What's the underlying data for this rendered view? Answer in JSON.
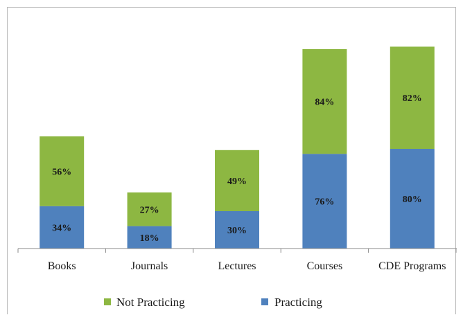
{
  "chart_data": {
    "type": "bar",
    "stacked": true,
    "categories": [
      "Books",
      "Journals",
      "Lectures",
      "Courses",
      "CDE Programs"
    ],
    "series": [
      {
        "name": "Practicing",
        "values": [
          34,
          18,
          30,
          76,
          80
        ],
        "labels": [
          "34%",
          "18%",
          "30%",
          "76%",
          "80%"
        ],
        "color": "#4f81bd"
      },
      {
        "name": "Not Practicing",
        "values": [
          56,
          27,
          49,
          84,
          82
        ],
        "labels": [
          "56%",
          "27%",
          "49%",
          "84%",
          "82%"
        ],
        "color": "#8db742"
      }
    ],
    "legend": {
      "placement": "bottom",
      "entries": [
        {
          "name": "Not Practicing",
          "color": "#8db742"
        },
        {
          "name": "Practicing",
          "color": "#4f81bd"
        }
      ]
    },
    "ylim": [
      0,
      160
    ],
    "grid": false
  }
}
